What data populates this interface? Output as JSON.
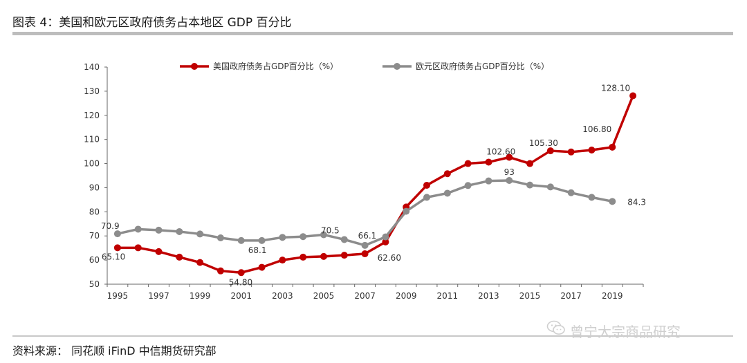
{
  "header": {
    "title": "图表 4：美国和欧元区政府债务占本地区 GDP 百分比"
  },
  "footer": {
    "source": "资料来源：  同花顺 iFinD  中信期货研究部"
  },
  "watermark": {
    "text": "曾宁大宗商品研究",
    "icon": "wechat-icon"
  },
  "chart_data": {
    "type": "line",
    "title": "",
    "xlabel": "",
    "ylabel": "",
    "ylim": [
      50,
      140
    ],
    "yticks": [
      50,
      60,
      70,
      80,
      90,
      100,
      110,
      120,
      130,
      140
    ],
    "xticks": [
      1995,
      1997,
      1999,
      2001,
      2003,
      2005,
      2007,
      2009,
      2011,
      2013,
      2015,
      2017,
      2019
    ],
    "legend_position": "top",
    "grid": false,
    "series": [
      {
        "name": "美国政府债务占GDP百分比（%）",
        "color": "#c00000",
        "x": [
          1995,
          1996,
          1997,
          1998,
          1999,
          2000,
          2001,
          2002,
          2003,
          2004,
          2005,
          2006,
          2007,
          2008,
          2009,
          2010,
          2011,
          2012,
          2013,
          2014,
          2015,
          2016,
          2017,
          2018,
          2019,
          2020
        ],
        "values": [
          65.1,
          65.1,
          63.5,
          61.2,
          59.0,
          55.5,
          54.8,
          57.0,
          60.0,
          61.2,
          61.5,
          62.0,
          62.6,
          67.5,
          82.0,
          91.0,
          95.8,
          100.0,
          100.6,
          102.6,
          100.0,
          105.3,
          104.8,
          105.6,
          106.8,
          128.1
        ]
      },
      {
        "name": "欧元区政府债务占GDP百分比（%）",
        "color": "#8c8c8c",
        "x": [
          1995,
          1996,
          1997,
          1998,
          1999,
          2000,
          2001,
          2002,
          2003,
          2004,
          2005,
          2006,
          2007,
          2008,
          2009,
          2010,
          2011,
          2012,
          2013,
          2014,
          2015,
          2016,
          2017,
          2018,
          2019
        ],
        "values": [
          70.9,
          72.8,
          72.4,
          71.8,
          70.8,
          69.2,
          68.1,
          68.1,
          69.4,
          69.7,
          70.5,
          68.5,
          66.1,
          69.6,
          80.2,
          86.0,
          87.7,
          90.9,
          92.8,
          93.0,
          91.1,
          90.3,
          87.9,
          86.0,
          84.3
        ]
      }
    ],
    "annotations": [
      {
        "text": "70.9",
        "x": 1995,
        "y": 70.9
      },
      {
        "text": "65.10",
        "x": 1995,
        "y": 65.1
      },
      {
        "text": "68.1",
        "x": 2001,
        "y": 68.1
      },
      {
        "text": "54.80",
        "x": 2001,
        "y": 54.8
      },
      {
        "text": "70.5",
        "x": 2005,
        "y": 70.5
      },
      {
        "text": "66.1",
        "x": 2007,
        "y": 66.1
      },
      {
        "text": "62.60",
        "x": 2007,
        "y": 62.6
      },
      {
        "text": "102.60",
        "x": 2014,
        "y": 102.6
      },
      {
        "text": "93",
        "x": 2014,
        "y": 93.0
      },
      {
        "text": "105.30",
        "x": 2016,
        "y": 105.3
      },
      {
        "text": "106.80",
        "x": 2019,
        "y": 106.8
      },
      {
        "text": "128.10",
        "x": 2020,
        "y": 128.1
      },
      {
        "text": "84.3",
        "x": 2019,
        "y": 84.3
      }
    ]
  }
}
